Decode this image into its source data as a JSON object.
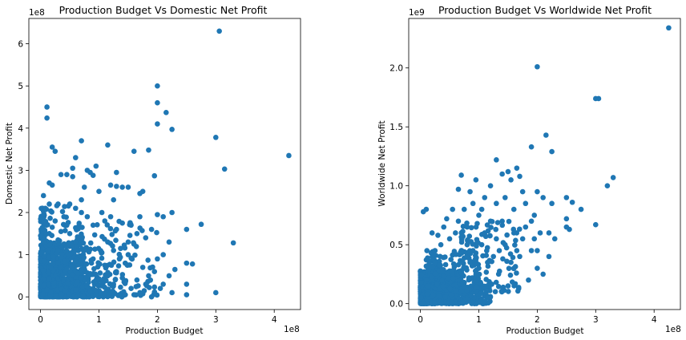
{
  "chart_data": [
    {
      "type": "scatter",
      "title": "Production Budget Vs Domestic Net Profit",
      "xlabel": "Production Budget",
      "ylabel": "Domestic Net Profit",
      "x_offset_label": "1e8",
      "y_offset_label": "1e8",
      "xlim": [
        -0.2,
        4.45
      ],
      "ylim": [
        -0.3,
        6.6
      ],
      "xticks": [
        0,
        1,
        2,
        3,
        4
      ],
      "xtick_labels": [
        "0",
        "1",
        "2",
        "3",
        "4"
      ],
      "yticks": [
        0,
        1,
        2,
        3,
        4,
        5,
        6
      ],
      "ytick_labels": [
        "0",
        "1",
        "2",
        "3",
        "4",
        "5",
        "6"
      ],
      "color": "#1f77b4",
      "points": [
        [
          3.06,
          6.3
        ],
        [
          0.11,
          4.5
        ],
        [
          0.11,
          4.24
        ],
        [
          2.0,
          5.0
        ],
        [
          2.0,
          4.6
        ],
        [
          2.0,
          4.1
        ],
        [
          2.15,
          4.37
        ],
        [
          2.25,
          3.97
        ],
        [
          3.0,
          3.78
        ],
        [
          4.25,
          3.35
        ],
        [
          3.15,
          3.03
        ],
        [
          3.3,
          1.28
        ],
        [
          2.75,
          1.72
        ],
        [
          2.5,
          1.6
        ],
        [
          2.5,
          0.8
        ],
        [
          2.6,
          0.78
        ],
        [
          3.0,
          0.1
        ],
        [
          2.5,
          0.3
        ],
        [
          2.5,
          0.05
        ],
        [
          0.7,
          3.7
        ],
        [
          1.15,
          3.6
        ],
        [
          1.6,
          3.45
        ],
        [
          1.85,
          3.48
        ],
        [
          0.2,
          3.55
        ],
        [
          0.25,
          3.45
        ],
        [
          1.95,
          2.87
        ],
        [
          2.25,
          2.0
        ],
        [
          2.1,
          1.9
        ],
        [
          2.0,
          1.95
        ],
        [
          1.7,
          1.9
        ],
        [
          1.75,
          2.5
        ],
        [
          1.7,
          2.45
        ],
        [
          1.5,
          2.6
        ],
        [
          1.4,
          2.6
        ],
        [
          1.3,
          2.62
        ],
        [
          1.2,
          2.65
        ],
        [
          1.3,
          2.95
        ],
        [
          0.9,
          2.88
        ],
        [
          0.85,
          2.95
        ],
        [
          0.55,
          3.05
        ],
        [
          0.55,
          2.85
        ],
        [
          0.45,
          2.9
        ],
        [
          0.35,
          2.9
        ],
        [
          0.8,
          3.0
        ],
        [
          0.6,
          3.3
        ],
        [
          0.95,
          3.1
        ],
        [
          0.05,
          2.4
        ],
        [
          0.15,
          2.7
        ],
        [
          0.2,
          2.65
        ],
        [
          0.3,
          2.2
        ],
        [
          0.5,
          2.2
        ],
        [
          0.7,
          2.3
        ],
        [
          0.75,
          2.6
        ],
        [
          1.25,
          2.3
        ],
        [
          1.0,
          2.5
        ],
        [
          0.15,
          2.2
        ],
        [
          1.9,
          1.6
        ],
        [
          1.8,
          1.4
        ],
        [
          1.65,
          1.5
        ],
        [
          1.6,
          1.25
        ],
        [
          1.5,
          1.3
        ],
        [
          1.55,
          1.7
        ],
        [
          1.4,
          1.75
        ],
        [
          1.3,
          1.6
        ],
        [
          1.2,
          1.9
        ],
        [
          1.1,
          1.8
        ],
        [
          1.05,
          2.0
        ],
        [
          0.9,
          1.7
        ],
        [
          0.8,
          1.9
        ],
        [
          0.7,
          2.0
        ],
        [
          0.6,
          2.1
        ],
        [
          1.5,
          1.0
        ],
        [
          1.45,
          0.8
        ],
        [
          1.35,
          0.9
        ],
        [
          1.25,
          1.1
        ],
        [
          1.15,
          1.3
        ],
        [
          1.05,
          1.05
        ],
        [
          2.2,
          1.3
        ],
        [
          2.1,
          1.0
        ],
        [
          2.0,
          0.9
        ],
        [
          1.95,
          0.6
        ],
        [
          1.85,
          0.5
        ],
        [
          1.8,
          0.3
        ],
        [
          1.75,
          0.7
        ],
        [
          1.7,
          0.1
        ],
        [
          1.65,
          0.4
        ],
        [
          2.2,
          0.5
        ],
        [
          2.3,
          0.65
        ],
        [
          2.05,
          0.2
        ],
        [
          1.55,
          0.2
        ],
        [
          1.45,
          0.35
        ],
        [
          1.6,
          0.05
        ],
        [
          1.9,
          0.0
        ],
        [
          2.1,
          0.3
        ],
        [
          2.25,
          0.1
        ],
        [
          1.35,
          0.05
        ],
        [
          1.4,
          0.45
        ],
        [
          1.25,
          0.3
        ],
        [
          1.3,
          0.6
        ],
        [
          1.2,
          0.1
        ],
        [
          1.15,
          0.5
        ],
        [
          1.1,
          0.75
        ],
        [
          1.0,
          0.4
        ],
        [
          0.95,
          0.15
        ],
        [
          0.9,
          0.9
        ],
        [
          0.85,
          0.55
        ],
        [
          0.8,
          0.25
        ],
        [
          0.75,
          1.1
        ],
        [
          0.7,
          0.65
        ],
        [
          0.65,
          1.4
        ],
        [
          0.6,
          0.85
        ],
        [
          0.55,
          1.2
        ],
        [
          0.5,
          1.5
        ],
        [
          0.45,
          1.7
        ],
        [
          0.4,
          1.9
        ],
        [
          0.35,
          1.55
        ],
        [
          0.3,
          1.35
        ],
        [
          0.25,
          1.8
        ],
        [
          0.2,
          1.65
        ],
        [
          0.15,
          1.5
        ],
        [
          0.1,
          1.7
        ],
        [
          0.05,
          1.3
        ],
        [
          0.0,
          1.45
        ],
        [
          0.05,
          1.75
        ],
        [
          0.3,
          1.1
        ],
        [
          0.4,
          1.25
        ],
        [
          0.5,
          1.0
        ],
        [
          0.6,
          1.3
        ]
      ],
      "dense_regions": [
        {
          "x": [
            0.0,
            0.75
          ],
          "y": [
            0.0,
            1.3
          ],
          "count": 550
        },
        {
          "x": [
            0.0,
            1.3
          ],
          "y": [
            0.0,
            0.6
          ],
          "count": 280
        },
        {
          "x": [
            0.0,
            0.5
          ],
          "y": [
            0.0,
            2.2
          ],
          "count": 160
        },
        {
          "x": [
            0.6,
            2.0
          ],
          "y": [
            0.0,
            1.8
          ],
          "count": 150
        }
      ]
    },
    {
      "type": "scatter",
      "title": "Production Budget Vs Worldwide Net Profit",
      "xlabel": "Production Budget",
      "ylabel": "Worldwide Net Profit",
      "x_offset_label": "1e8",
      "y_offset_label": "1e9",
      "xlim": [
        -0.2,
        4.45
      ],
      "ylim": [
        -0.05,
        2.42
      ],
      "xticks": [
        0,
        1,
        2,
        3,
        4
      ],
      "xtick_labels": [
        "0",
        "1",
        "2",
        "3",
        "4"
      ],
      "yticks": [
        0.0,
        0.5,
        1.0,
        1.5,
        2.0
      ],
      "ytick_labels": [
        "0.0",
        "0.5",
        "1.0",
        "1.5",
        "2.0"
      ],
      "color": "#1f77b4",
      "points": [
        [
          4.25,
          2.34
        ],
        [
          2.0,
          2.01
        ],
        [
          3.0,
          1.74
        ],
        [
          3.05,
          1.74
        ],
        [
          2.15,
          1.43
        ],
        [
          2.25,
          1.29
        ],
        [
          1.9,
          1.33
        ],
        [
          1.3,
          1.22
        ],
        [
          3.3,
          1.07
        ],
        [
          3.2,
          1.0
        ],
        [
          3.0,
          0.67
        ],
        [
          2.75,
          0.8
        ],
        [
          2.5,
          0.9
        ],
        [
          2.5,
          0.72
        ],
        [
          2.5,
          0.65
        ],
        [
          2.55,
          0.63
        ],
        [
          2.6,
          0.86
        ],
        [
          2.25,
          0.85
        ],
        [
          2.2,
          0.6
        ],
        [
          2.1,
          0.9
        ],
        [
          2.0,
          0.95
        ],
        [
          1.95,
          0.75
        ],
        [
          1.9,
          0.7
        ],
        [
          1.8,
          0.65
        ],
        [
          1.75,
          0.55
        ],
        [
          1.7,
          0.4
        ],
        [
          1.6,
          0.3
        ],
        [
          1.5,
          1.12
        ],
        [
          1.4,
          1.1
        ],
        [
          1.55,
          1.05
        ],
        [
          1.65,
          1.15
        ],
        [
          1.7,
          1.08
        ],
        [
          0.7,
          1.09
        ],
        [
          0.65,
          0.97
        ],
        [
          0.85,
          0.95
        ],
        [
          0.95,
          1.05
        ],
        [
          0.05,
          0.78
        ],
        [
          0.1,
          0.8
        ],
        [
          2.2,
          0.4
        ],
        [
          2.1,
          0.25
        ],
        [
          2.0,
          0.3
        ],
        [
          2.3,
          0.55
        ],
        [
          1.85,
          0.2
        ],
        [
          1.5,
          0.15
        ],
        [
          1.9,
          0.45
        ],
        [
          1.2,
          0.7
        ],
        [
          1.1,
          0.6
        ],
        [
          1.0,
          0.75
        ],
        [
          0.9,
          0.85
        ],
        [
          0.8,
          0.65
        ],
        [
          0.75,
          0.8
        ],
        [
          0.6,
          0.6
        ],
        [
          0.5,
          0.55
        ],
        [
          0.4,
          0.65
        ],
        [
          0.3,
          0.58
        ],
        [
          0.2,
          0.6
        ],
        [
          1.45,
          0.5
        ],
        [
          1.35,
          0.45
        ],
        [
          1.3,
          0.55
        ],
        [
          1.25,
          0.4
        ],
        [
          1.15,
          0.35
        ],
        [
          1.05,
          0.5
        ],
        [
          1.0,
          0.3
        ],
        [
          0.9,
          0.45
        ],
        [
          0.95,
          0.25
        ],
        [
          0.85,
          0.35
        ],
        [
          0.8,
          0.5
        ],
        [
          0.7,
          0.45
        ],
        [
          1.6,
          0.6
        ],
        [
          1.65,
          0.45
        ],
        [
          1.55,
          0.35
        ],
        [
          1.4,
          0.7
        ],
        [
          1.8,
          0.85
        ],
        [
          1.75,
          0.95
        ],
        [
          1.6,
          0.8
        ],
        [
          1.45,
          0.9
        ],
        [
          1.3,
          0.85
        ],
        [
          1.2,
          1.0
        ],
        [
          1.1,
          0.9
        ],
        [
          1.05,
          0.8
        ],
        [
          2.05,
          0.6
        ],
        [
          2.0,
          0.45
        ],
        [
          1.95,
          0.55
        ],
        [
          0.55,
          0.8
        ],
        [
          0.45,
          0.72
        ],
        [
          0.35,
          0.5
        ],
        [
          0.65,
          0.7
        ],
        [
          0.25,
          0.45
        ]
      ],
      "dense_regions": [
        {
          "x": [
            0.0,
            0.7
          ],
          "y": [
            0.0,
            0.28
          ],
          "count": 550
        },
        {
          "x": [
            0.0,
            1.2
          ],
          "y": [
            0.0,
            0.15
          ],
          "count": 260
        },
        {
          "x": [
            0.1,
            1.0
          ],
          "y": [
            0.05,
            0.45
          ],
          "count": 200
        },
        {
          "x": [
            0.7,
            1.7
          ],
          "y": [
            0.1,
            0.7
          ],
          "count": 120
        }
      ]
    }
  ]
}
